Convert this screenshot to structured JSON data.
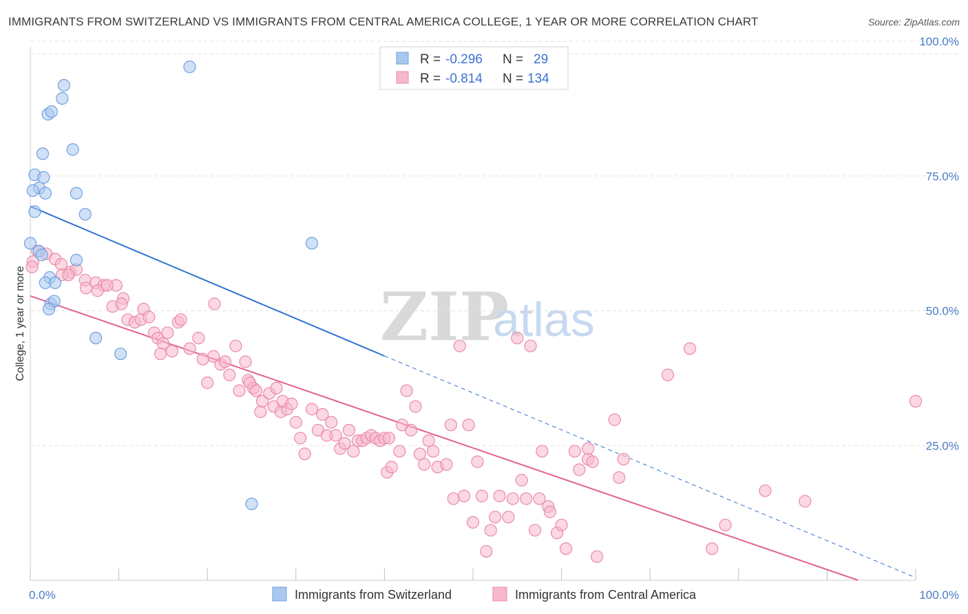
{
  "title": "IMMIGRANTS FROM SWITZERLAND VS IMMIGRANTS FROM CENTRAL AMERICA COLLEGE, 1 YEAR OR MORE CORRELATION CHART",
  "source": "Source: ZipAtlas.com",
  "watermark": {
    "zip": "ZIP",
    "atlas": "atlas"
  },
  "legend": {
    "r_label": "R =",
    "n_label": "N =",
    "rows": [
      {
        "r": "-0.296",
        "n": "29",
        "color": "#a9c8f0",
        "stroke": "#6f9fe0"
      },
      {
        "r": "-0.814",
        "n": "134",
        "color": "#f7b8cc",
        "stroke": "#e98aa8"
      }
    ]
  },
  "bottom_legend": {
    "series1": "Immigrants from Switzerland",
    "series2": "Immigrants from Central America"
  },
  "colors": {
    "blue_fill": "#a9c8f0",
    "blue_stroke": "#6f9fe0",
    "blue_line": "#2f72d0",
    "pink_fill": "#f7b8cc",
    "pink_stroke": "#e98aa8",
    "pink_line": "#e2628f",
    "tick_text": "#4a7cc9",
    "grid": "#e1e1e1"
  },
  "chart_data": {
    "type": "scatter",
    "title": "IMMIGRANTS FROM SWITZERLAND VS IMMIGRANTS FROM CENTRAL AMERICA COLLEGE, 1 YEAR OR MORE CORRELATION CHART",
    "xlabel": "",
    "ylabel": "College, 1 year or more",
    "xlim": [
      0,
      100
    ],
    "ylim": [
      0,
      100
    ],
    "x_tick_labels": [
      "0.0%",
      "100.0%"
    ],
    "y_tick_labels": [
      "25.0%",
      "50.0%",
      "75.0%",
      "100.0%"
    ],
    "y_ticks": [
      25,
      50,
      75,
      100
    ],
    "grid": true,
    "legend_position": "top-center",
    "series": [
      {
        "name": "Immigrants from Switzerland",
        "r": -0.296,
        "n": 29,
        "trend": {
          "x0": 0,
          "y0": 71.0,
          "x1": 40.0,
          "y1": 42.6,
          "dash_to_x": 100,
          "dash_to_y": 0.5
        },
        "points": [
          [
            0.5,
            77.0
          ],
          [
            1.5,
            76.5
          ],
          [
            1.0,
            74.5
          ],
          [
            0.3,
            74.0
          ],
          [
            1.7,
            73.5
          ],
          [
            0.5,
            70.0
          ],
          [
            3.8,
            94.0
          ],
          [
            3.6,
            91.5
          ],
          [
            2.0,
            88.5
          ],
          [
            2.4,
            89.0
          ],
          [
            1.4,
            81.0
          ],
          [
            4.8,
            81.8
          ],
          [
            5.2,
            73.5
          ],
          [
            6.2,
            69.5
          ],
          [
            18.0,
            97.5
          ],
          [
            0.0,
            64.0
          ],
          [
            1.0,
            62.5
          ],
          [
            1.3,
            61.8
          ],
          [
            5.2,
            60.8
          ],
          [
            2.2,
            57.5
          ],
          [
            1.7,
            56.5
          ],
          [
            2.8,
            56.5
          ],
          [
            2.3,
            52.5
          ],
          [
            2.7,
            53.0
          ],
          [
            7.4,
            46.0
          ],
          [
            10.2,
            43.0
          ],
          [
            31.8,
            64.0
          ],
          [
            25.0,
            14.5
          ],
          [
            2.1,
            51.5
          ]
        ]
      },
      {
        "name": "Immigrants from Central America",
        "r": -0.814,
        "n": 134,
        "trend": {
          "x0": 0,
          "y0": 54.0,
          "x1": 93.5,
          "y1": 0.0
        },
        "points": [
          [
            0.3,
            60.5
          ],
          [
            0.8,
            62.5
          ],
          [
            1.8,
            62.0
          ],
          [
            2.8,
            61.0
          ],
          [
            3.5,
            60.0
          ],
          [
            4.5,
            58.5
          ],
          [
            3.6,
            58.0
          ],
          [
            5.2,
            59.0
          ],
          [
            4.3,
            58.0
          ],
          [
            6.2,
            57.0
          ],
          [
            7.4,
            56.5
          ],
          [
            8.3,
            56.0
          ],
          [
            6.3,
            55.5
          ],
          [
            7.6,
            55.0
          ],
          [
            9.7,
            56.0
          ],
          [
            8.7,
            56.0
          ],
          [
            10.5,
            53.5
          ],
          [
            9.3,
            52.0
          ],
          [
            10.3,
            52.5
          ],
          [
            12.8,
            51.5
          ],
          [
            11.0,
            49.5
          ],
          [
            11.8,
            49.0
          ],
          [
            12.5,
            49.5
          ],
          [
            13.4,
            50.0
          ],
          [
            16.7,
            49.0
          ],
          [
            17.0,
            49.5
          ],
          [
            14.0,
            47.0
          ],
          [
            14.4,
            46.0
          ],
          [
            15.5,
            47.0
          ],
          [
            15.0,
            45.0
          ],
          [
            16.0,
            43.5
          ],
          [
            14.7,
            43.0
          ],
          [
            19.0,
            46.0
          ],
          [
            18.0,
            44.0
          ],
          [
            19.5,
            42.0
          ],
          [
            20.0,
            37.5
          ],
          [
            20.8,
            52.5
          ],
          [
            20.7,
            42.5
          ],
          [
            21.5,
            41.0
          ],
          [
            22.0,
            41.5
          ],
          [
            22.5,
            39.0
          ],
          [
            23.2,
            44.5
          ],
          [
            23.6,
            36.0
          ],
          [
            24.3,
            41.5
          ],
          [
            24.6,
            38.0
          ],
          [
            25.2,
            36.5
          ],
          [
            24.8,
            37.5
          ],
          [
            25.5,
            36.0
          ],
          [
            26.0,
            32.0
          ],
          [
            26.2,
            34.0
          ],
          [
            27.0,
            35.5
          ],
          [
            27.8,
            36.5
          ],
          [
            27.5,
            33.0
          ],
          [
            28.3,
            32.0
          ],
          [
            29.0,
            32.5
          ],
          [
            28.5,
            34.0
          ],
          [
            29.5,
            33.5
          ],
          [
            30.0,
            30.0
          ],
          [
            30.5,
            27.0
          ],
          [
            31.0,
            24.0
          ],
          [
            31.8,
            32.5
          ],
          [
            32.5,
            28.5
          ],
          [
            33.0,
            31.5
          ],
          [
            33.5,
            27.5
          ],
          [
            34.0,
            30.0
          ],
          [
            34.5,
            27.5
          ],
          [
            35.0,
            25.0
          ],
          [
            35.5,
            26.0
          ],
          [
            36.0,
            28.5
          ],
          [
            36.5,
            24.5
          ],
          [
            37.0,
            26.5
          ],
          [
            37.5,
            26.5
          ],
          [
            38.0,
            27.0
          ],
          [
            38.5,
            27.5
          ],
          [
            39.0,
            27.0
          ],
          [
            39.5,
            26.5
          ],
          [
            40.0,
            27.0
          ],
          [
            40.5,
            27.0
          ],
          [
            40.3,
            20.5
          ],
          [
            40.8,
            21.5
          ],
          [
            41.7,
            24.5
          ],
          [
            42.0,
            29.5
          ],
          [
            42.5,
            36.0
          ],
          [
            43.0,
            28.5
          ],
          [
            43.5,
            33.0
          ],
          [
            44.0,
            24.0
          ],
          [
            44.5,
            22.0
          ],
          [
            45.0,
            26.5
          ],
          [
            45.5,
            24.5
          ],
          [
            46.0,
            21.5
          ],
          [
            47.0,
            22.0
          ],
          [
            47.5,
            29.5
          ],
          [
            47.8,
            15.5
          ],
          [
            48.5,
            44.5
          ],
          [
            49.0,
            16.0
          ],
          [
            49.5,
            29.5
          ],
          [
            50.0,
            11.0
          ],
          [
            50.5,
            22.5
          ],
          [
            51.0,
            16.0
          ],
          [
            51.5,
            5.5
          ],
          [
            52.0,
            9.5
          ],
          [
            52.5,
            12.0
          ],
          [
            53.0,
            16.0
          ],
          [
            54.0,
            12.0
          ],
          [
            54.5,
            15.5
          ],
          [
            55.0,
            46.0
          ],
          [
            55.5,
            19.0
          ],
          [
            56.5,
            44.5
          ],
          [
            56.0,
            15.5
          ],
          [
            57.0,
            9.5
          ],
          [
            57.5,
            15.5
          ],
          [
            57.8,
            24.5
          ],
          [
            58.5,
            14.0
          ],
          [
            58.7,
            13.0
          ],
          [
            59.5,
            9.0
          ],
          [
            60.0,
            10.5
          ],
          [
            60.5,
            6.0
          ],
          [
            61.5,
            24.5
          ],
          [
            62.0,
            21.0
          ],
          [
            63.0,
            23.0
          ],
          [
            63.0,
            25.0
          ],
          [
            63.5,
            22.5
          ],
          [
            64.0,
            4.5
          ],
          [
            66.0,
            30.5
          ],
          [
            66.5,
            19.5
          ],
          [
            67.0,
            23.0
          ],
          [
            72.0,
            39.0
          ],
          [
            74.5,
            44.0
          ],
          [
            77.0,
            6.0
          ],
          [
            78.5,
            10.5
          ],
          [
            83.0,
            17.0
          ],
          [
            87.5,
            15.0
          ],
          [
            100.0,
            34.0
          ],
          [
            0.2,
            59.5
          ]
        ]
      }
    ]
  }
}
